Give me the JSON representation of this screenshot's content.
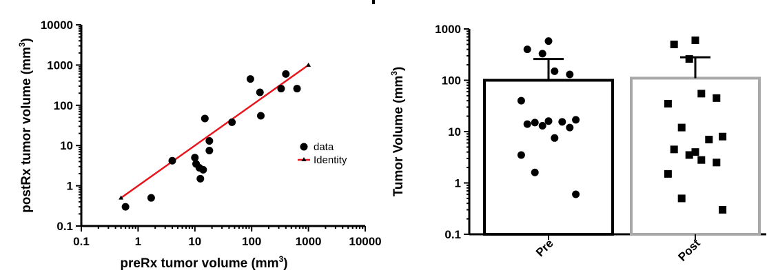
{
  "chart_data": [
    {
      "type": "scatter",
      "xlabel": "preRx tumor volume (mm",
      "xlabel_sup": "3",
      "xlabel_close": ")",
      "ylabel": "postRx tumor volume (mm",
      "ylabel_sup": "3",
      "ylabel_close": ")",
      "xscale": "log",
      "yscale": "log",
      "xlim": [
        0.1,
        10000
      ],
      "ylim": [
        0.1,
        10000
      ],
      "xticks": [
        0.1,
        1,
        10,
        100,
        1000,
        10000
      ],
      "xtick_labels": [
        "0.1",
        "1",
        "10",
        "100",
        "1000",
        "10000"
      ],
      "yticks": [
        0.1,
        1,
        10,
        100,
        1000,
        10000
      ],
      "ytick_labels": [
        "0.1",
        "1",
        "10",
        "100",
        "1000",
        "10000"
      ],
      "series": [
        {
          "name": "data",
          "color": "#000000",
          "x": [
            0.6,
            1.7,
            4,
            10,
            10.5,
            12,
            12.5,
            14,
            15,
            18,
            18,
            45,
            95,
            140,
            145,
            330,
            400,
            630
          ],
          "y": [
            0.3,
            0.5,
            4.2,
            5,
            3.5,
            2.8,
            1.5,
            2.5,
            47,
            13,
            7.5,
            38,
            450,
            210,
            55,
            260,
            600,
            260
          ]
        },
        {
          "name": "Identity",
          "color": "#e8141c",
          "x": [
            0.5,
            1000
          ],
          "y": [
            0.5,
            1000
          ]
        }
      ],
      "legend": [
        "data",
        "Identity"
      ],
      "legend_position": "right-middle"
    },
    {
      "type": "bar",
      "ylabel": "Tumor Volume (mm",
      "ylabel_sup": "3",
      "ylabel_close": ")",
      "yscale": "log",
      "ylim": [
        0.1,
        1000
      ],
      "yticks": [
        0.1,
        1,
        10,
        100,
        1000
      ],
      "ytick_labels": [
        "0.1",
        "1",
        "10",
        "100",
        "1000"
      ],
      "categories": [
        "Pre",
        "Post"
      ],
      "values": [
        100,
        110
      ],
      "error_upper": [
        260,
        280
      ],
      "bar_colors": [
        "#000000",
        "#a8a8a8"
      ],
      "points": [
        {
          "category": "Pre",
          "marker": "circle",
          "values": [
            580,
            400,
            330,
            130,
            150,
            40,
            15,
            17,
            15.5,
            16,
            14,
            13,
            12,
            7.5,
            3.5,
            1.6,
            0.6
          ]
        },
        {
          "category": "Post",
          "marker": "square",
          "values": [
            600,
            500,
            260,
            45,
            55,
            35,
            12,
            8,
            7,
            4,
            4.5,
            3.5,
            2.5,
            2.8,
            1.5,
            0.5,
            0.3
          ]
        }
      ]
    }
  ]
}
